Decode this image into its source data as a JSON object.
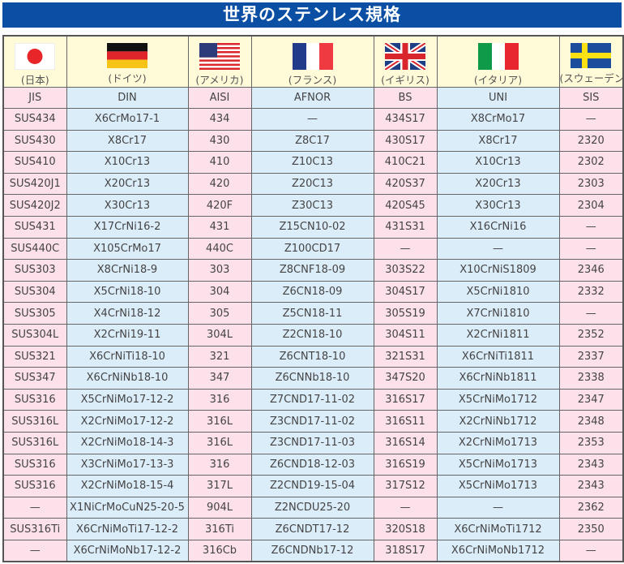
{
  "title": "世界のステンレス規格",
  "colors": {
    "title_bg": "#0a4fa3",
    "pink_col": "#fde1ea",
    "blue_col": "#dcedfa",
    "flag_row": "#fffbd8"
  },
  "countries": [
    {
      "name": "(日本)",
      "flag": "japan-flag-icon"
    },
    {
      "name": "(ドイツ)",
      "flag": "germany-flag-icon"
    },
    {
      "name": "(アメリカ)",
      "flag": "usa-flag-icon"
    },
    {
      "name": "(フランス)",
      "flag": "france-flag-icon"
    },
    {
      "name": "(イギリス)",
      "flag": "uk-flag-icon"
    },
    {
      "name": "(イタリア)",
      "flag": "italy-flag-icon"
    },
    {
      "name": "(スウェーデン)",
      "flag": "sweden-flag-icon"
    }
  ],
  "columns": [
    "JIS",
    "DIN",
    "AISI",
    "AFNOR",
    "BS",
    "UNI",
    "SIS"
  ],
  "rows": [
    [
      "SUS434",
      "X6CrMo17-1",
      "434",
      "—",
      "434S17",
      "X8CrMo17",
      "—"
    ],
    [
      "SUS430",
      "X8Cr17",
      "430",
      "Z8C17",
      "430S17",
      "X8Cr17",
      "2320"
    ],
    [
      "SUS410",
      "X10Cr13",
      "410",
      "Z10C13",
      "410C21",
      "X10Cr13",
      "2302"
    ],
    [
      "SUS420J1",
      "X20Cr13",
      "420",
      "Z20C13",
      "420S37",
      "X20Cr13",
      "2303"
    ],
    [
      "SUS420J2",
      "X30Cr13",
      "420F",
      "Z30C13",
      "420S45",
      "X30Cr13",
      "2304"
    ],
    [
      "SUS431",
      "X17CrNi16-2",
      "431",
      "Z15CN10-02",
      "431S31",
      "X16CrNi16",
      "—"
    ],
    [
      "SUS440C",
      "X105CrMo17",
      "440C",
      "Z100CD17",
      "—",
      "—",
      "—"
    ],
    [
      "SUS303",
      "X8CrNi18-9",
      "303",
      "Z8CNF18-09",
      "303S22",
      "X10CrNiS1809",
      "2346"
    ],
    [
      "SUS304",
      "X5CrNi18-10",
      "304",
      "Z6CN18-09",
      "304S17",
      "X5CrNi1810",
      "2332"
    ],
    [
      "SUS305",
      "X4CrNi18-12",
      "305",
      "Z5CN18-11",
      "305S19",
      "X7CrNi1810",
      "—"
    ],
    [
      "SUS304L",
      "X2CrNi19-11",
      "304L",
      "Z2CN18-10",
      "304S11",
      "X2CrNi1811",
      "2352"
    ],
    [
      "SUS321",
      "X6CrNiTi18-10",
      "321",
      "Z6CNT18-10",
      "321S31",
      "X6CrNiTi1811",
      "2337"
    ],
    [
      "SUS347",
      "X6CrNiNb18-10",
      "347",
      "Z6CNNb18-10",
      "347S20",
      "X6CrNiNb1811",
      "2338"
    ],
    [
      "SUS316",
      "X5CrNiMo17-12-2",
      "316",
      "Z7CND17-11-02",
      "316S17",
      "X5CrNiMo1712",
      "2347"
    ],
    [
      "SUS316L",
      "X2CrNiMo17-12-2",
      "316L",
      "Z3CND17-11-02",
      "316S11",
      "X2CrNiNb1712",
      "2348"
    ],
    [
      "SUS316L",
      "X2CrNiMo18-14-3",
      "316L",
      "Z3CND17-11-03",
      "316S14",
      "X2CrNiMo1713",
      "2353"
    ],
    [
      "SUS316",
      "X3CrNiMo17-13-3",
      "316",
      "Z6CND18-12-03",
      "316S19",
      "X5CrNiMo1713",
      "2343"
    ],
    [
      "SUS316",
      "X2CrNiMo18-15-4",
      "317L",
      "Z2CND19-15-04",
      "317S12",
      "X5CrNiMo1713",
      "2343"
    ],
    [
      "—",
      "X1NiCrMoCuN25-20-5",
      "904L",
      "Z2NCDU25-20",
      "—",
      "—",
      "2362"
    ],
    [
      "SUS316Ti",
      "X6CrNiMoTi17-12-2",
      "316Ti",
      "Z6CNDT17-12",
      "320S18",
      "X6CrNiMoTi1712",
      "2350"
    ],
    [
      "—",
      "X6CrNiMoNb17-12-2",
      "316Cb",
      "Z6CNDNb17-12",
      "318S17",
      "X6CrNiMoNb1712",
      "—"
    ]
  ]
}
